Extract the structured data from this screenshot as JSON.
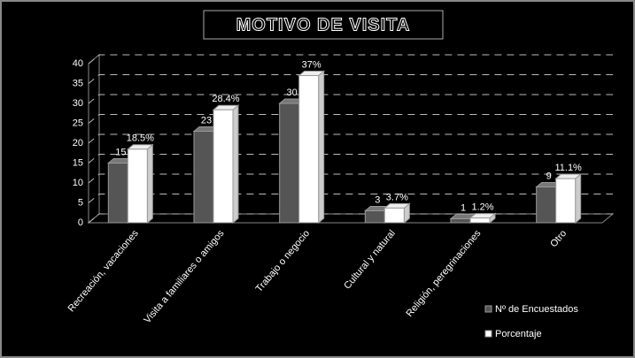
{
  "chart_data": {
    "type": "bar",
    "title": "MOTIVO DE VISITA",
    "categories": [
      "Recreación, vacaciones",
      "Visita a familiares o amigos",
      "Trabajo o negocio",
      "Cultural y natural",
      "Religión, peregrinaciones",
      "Otro"
    ],
    "series": [
      {
        "name": "Nº de Encuestados",
        "color": "#555555",
        "values": [
          15,
          23,
          30,
          3,
          1,
          9
        ]
      },
      {
        "name": "Porcentaje",
        "color": "#ffffff",
        "values": [
          18.5,
          28.4,
          37,
          3.7,
          1.2,
          11.1
        ],
        "value_labels": [
          "18.5%",
          "28.4%",
          "37%",
          "3.7%",
          "1.2%",
          "11.1%"
        ]
      }
    ],
    "ylim": [
      0,
      40
    ],
    "yticks": [
      0,
      5,
      10,
      15,
      20,
      25,
      30,
      35,
      40
    ],
    "grid": true,
    "legend": "bottom-right"
  }
}
